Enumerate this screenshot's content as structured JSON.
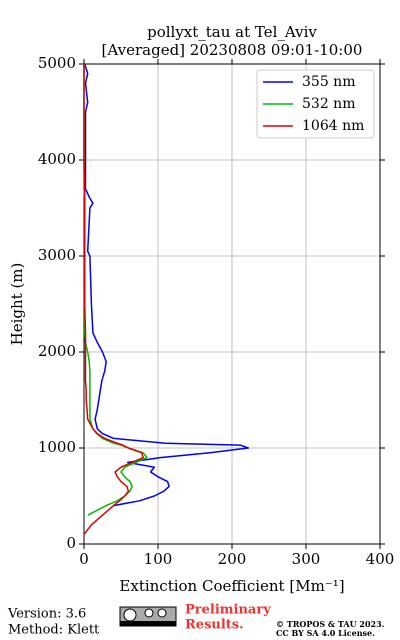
{
  "chart_data": {
    "type": "line",
    "title": "pollyxt_tau at Tel_Aviv",
    "subtitle": "[Averaged] 20230808 09:01-10:00",
    "xlabel": "Extinction Coefficient [Mm⁻¹]",
    "ylabel": "Height (m)",
    "y": [
      0,
      100,
      200,
      300,
      400,
      450,
      500,
      550,
      600,
      650,
      700,
      750,
      800,
      850,
      900,
      950,
      1000,
      1030,
      1050,
      1100,
      1150,
      1200,
      1300,
      1400,
      1500,
      1600,
      1700,
      1800,
      1900,
      2000,
      2100,
      2200,
      2500,
      3000,
      3050,
      3500,
      3550,
      3600,
      3700,
      4000,
      4500,
      4600,
      4800,
      4900,
      5000
    ],
    "series": [
      {
        "name": "355 nm",
        "color": "#0000ff",
        "values": [
          null,
          null,
          null,
          null,
          40,
          75,
          95,
          108,
          115,
          113,
          100,
          90,
          95,
          59,
          103,
          170,
          222,
          211,
          110,
          40,
          25,
          18,
          15,
          18,
          20,
          22,
          24,
          28,
          30,
          25,
          18,
          12,
          10,
          8,
          5,
          8,
          12,
          8,
          2,
          2,
          2,
          5,
          2,
          5,
          1
        ]
      },
      {
        "name": "532 nm",
        "color": "#00bb00",
        "values": [
          null,
          null,
          null,
          5,
          30,
          45,
          55,
          62,
          65,
          62,
          55,
          50,
          55,
          70,
          85,
          80,
          60,
          50,
          40,
          25,
          17,
          12,
          8,
          8,
          8,
          8,
          8,
          8,
          7,
          5,
          2,
          1,
          1,
          1,
          1,
          1,
          1,
          1,
          0,
          0,
          0,
          0,
          0,
          0,
          0
        ]
      },
      {
        "name": "1064 nm",
        "color": "#dd0000",
        "values": [
          null,
          0,
          10,
          25,
          40,
          48,
          55,
          60,
          58,
          50,
          45,
          42,
          50,
          65,
          80,
          78,
          60,
          52,
          45,
          28,
          18,
          12,
          5,
          4,
          3,
          3,
          2,
          2,
          2,
          2,
          2,
          2,
          1,
          1,
          1,
          1,
          1,
          1,
          1,
          0,
          0,
          0,
          0,
          0,
          0
        ]
      }
    ],
    "xlim": [
      0,
      400
    ],
    "xticks": [
      0,
      100,
      200,
      300,
      400
    ],
    "ylim": [
      0,
      5000
    ],
    "yticks": [
      0,
      1000,
      2000,
      3000,
      4000,
      5000
    ],
    "grid": true,
    "legend": "upper right"
  },
  "footer": {
    "version": "Version: 3.6",
    "method": "Method: Klett",
    "preliminary": [
      "Preliminary",
      "Results."
    ],
    "copyright": [
      "© TROPOS & TAU 2023.",
      "CC BY SA 4.0 License."
    ]
  }
}
